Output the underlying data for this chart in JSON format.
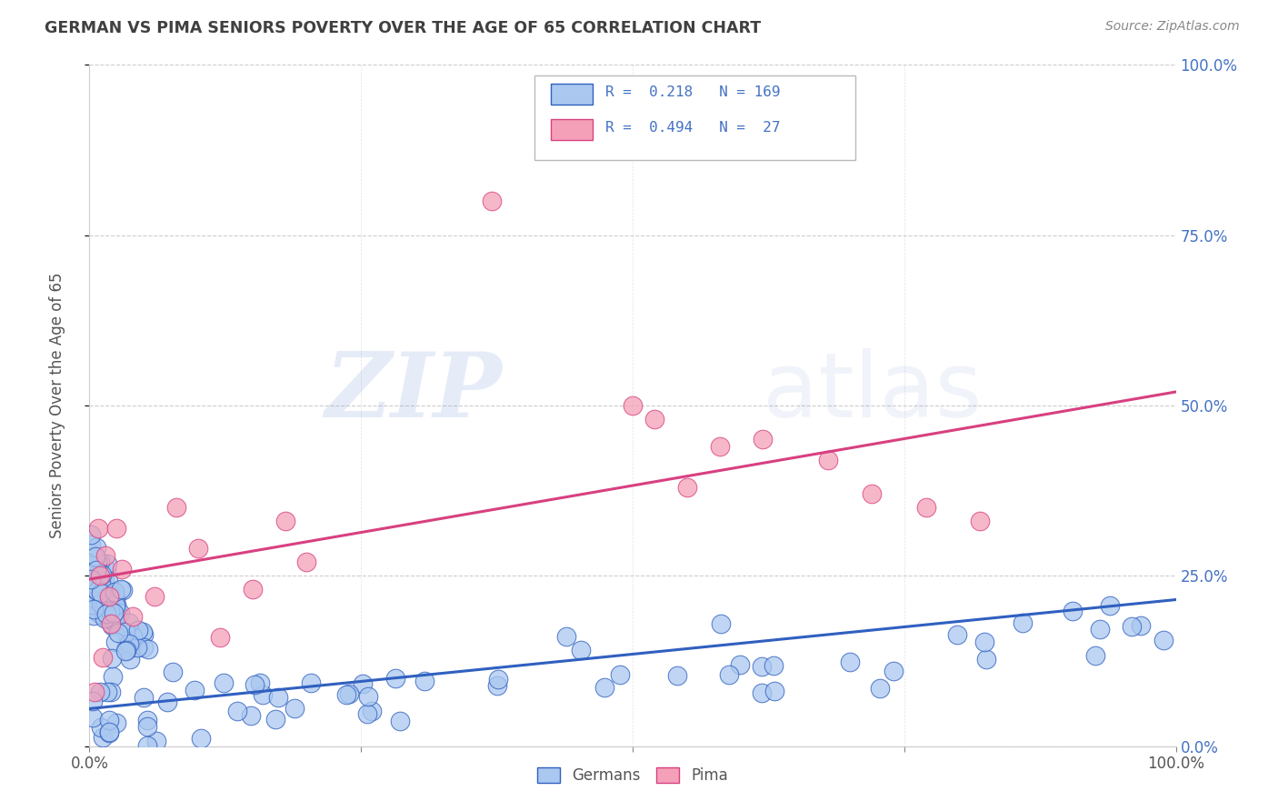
{
  "title": "GERMAN VS PIMA SENIORS POVERTY OVER THE AGE OF 65 CORRELATION CHART",
  "source": "Source: ZipAtlas.com",
  "ylabel": "Seniors Poverty Over the Age of 65",
  "watermark_zip": "ZIP",
  "watermark_atlas": "atlas",
  "german_R": 0.218,
  "german_N": 169,
  "pima_R": 0.494,
  "pima_N": 27,
  "german_color": "#aac8f0",
  "pima_color": "#f4a0b8",
  "german_line_color": "#3060c0",
  "pima_line_color": "#d84080",
  "background_color": "#ffffff",
  "grid_color": "#c8c8c8",
  "title_color": "#404040",
  "right_tick_color": "#4472c4",
  "legend_R_color": "#4472c4",
  "german_line_intercept": 0.055,
  "german_line_slope": 0.16,
  "pima_line_intercept": 0.245,
  "pima_line_slope": 0.275
}
